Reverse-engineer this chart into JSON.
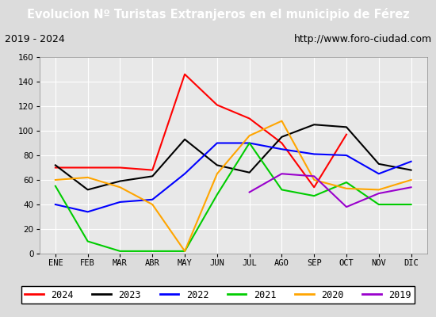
{
  "title": "Evolucion Nº Turistas Extranjeros en el municipio de Férez",
  "subtitle_left": "2019 - 2024",
  "subtitle_right": "http://www.foro-ciudad.com",
  "title_bg_color": "#5b9bd5",
  "title_text_color": "white",
  "subtitle_bg_color": "#e8e8e8",
  "subtitle_text_color": "black",
  "plot_bg_color": "#e8e8e8",
  "fig_bg_color": "#dcdcdc",
  "months": [
    "ENE",
    "FEB",
    "MAR",
    "ABR",
    "MAY",
    "JUN",
    "JUL",
    "AGO",
    "SEP",
    "OCT",
    "NOV",
    "DIC"
  ],
  "ylim": [
    0,
    160
  ],
  "yticks": [
    0,
    20,
    40,
    60,
    80,
    100,
    120,
    140,
    160
  ],
  "series": {
    "2024": {
      "color": "#ff0000",
      "values": [
        70,
        70,
        70,
        68,
        146,
        121,
        110,
        90,
        54,
        97,
        null,
        null
      ]
    },
    "2023": {
      "color": "#000000",
      "values": [
        72,
        52,
        59,
        63,
        93,
        72,
        66,
        95,
        105,
        103,
        73,
        68
      ]
    },
    "2022": {
      "color": "#0000ff",
      "values": [
        40,
        34,
        42,
        44,
        65,
        90,
        90,
        85,
        81,
        80,
        65,
        75
      ]
    },
    "2021": {
      "color": "#00cc00",
      "values": [
        55,
        10,
        2,
        2,
        2,
        48,
        90,
        52,
        47,
        58,
        40,
        40
      ]
    },
    "2020": {
      "color": "#ffa500",
      "values": [
        60,
        62,
        54,
        40,
        2,
        65,
        96,
        108,
        60,
        53,
        52,
        60
      ]
    },
    "2019": {
      "color": "#9900cc",
      "values": [
        null,
        null,
        null,
        null,
        null,
        null,
        50,
        65,
        63,
        38,
        49,
        54
      ]
    }
  },
  "legend_order": [
    "2024",
    "2023",
    "2022",
    "2021",
    "2020",
    "2019"
  ]
}
